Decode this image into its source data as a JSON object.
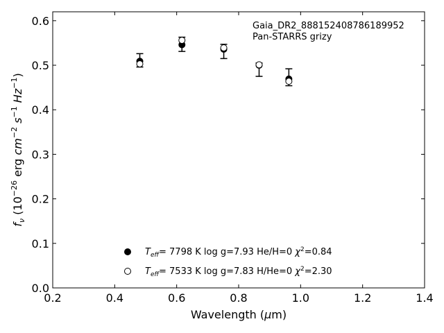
{
  "chart_data": {
    "type": "scatter",
    "title": "",
    "annotation": [
      "Gaia_DR2_888152408786189952",
      "Pan-STARRS grizy"
    ],
    "xlabel": "Wavelength (μm)",
    "ylabel": "f_ν (10^-26 erg cm^-2 s^-1 Hz^-1)",
    "xlim": [
      0.2,
      1.4
    ],
    "ylim": [
      0.0,
      0.62
    ],
    "xticks": [
      0.2,
      0.4,
      0.6,
      0.8,
      1.0,
      1.2,
      1.4
    ],
    "yticks": [
      0.0,
      0.1,
      0.2,
      0.3,
      0.4,
      0.5,
      0.6
    ],
    "xtick_labels": [
      "0.2",
      "0.4",
      "0.6",
      "0.8",
      "1.0",
      "1.2",
      "1.4"
    ],
    "ytick_labels": [
      "0.0",
      "0.1",
      "0.2",
      "0.3",
      "0.4",
      "0.5",
      "0.6"
    ],
    "grid": false,
    "observed": {
      "name": "Pan-STARRS grizy",
      "x": [
        0.481,
        0.617,
        0.752,
        0.866,
        0.962
      ],
      "y": [
        0.511,
        0.547,
        0.531,
        0.49,
        0.473
      ],
      "yerr": [
        0.015,
        0.016,
        0.016,
        0.015,
        0.019
      ]
    },
    "series": [
      {
        "name": "Teff= 7798 K log g=7.93 He/H=0 χ2=0.84",
        "marker": "filled-circle",
        "x": [
          0.481,
          0.617,
          0.752,
          0.866,
          0.962
        ],
        "y": [
          0.509,
          0.546,
          0.536,
          0.5,
          0.469
        ]
      },
      {
        "name": "Teff= 7533 K log g=7.83 H/He=0 χ2=2.30",
        "marker": "open-circle",
        "x": [
          0.481,
          0.617,
          0.752,
          0.866,
          0.962
        ],
        "y": [
          0.503,
          0.556,
          0.539,
          0.501,
          0.464
        ]
      }
    ],
    "legend_position": "bottom-center"
  }
}
